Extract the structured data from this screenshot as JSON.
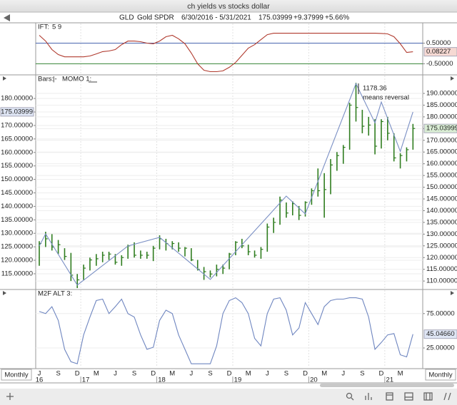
{
  "window_title": "ch yields vs stocks dollar",
  "header": {
    "symbol": "GLD",
    "name": "Gold SPDR",
    "date_range": "6/30/2016 - 5/31/2021",
    "last": "175.03999",
    "change": "+9.37999",
    "change_pct": "+5.66%"
  },
  "x_axis": {
    "months": [
      "J",
      "S",
      "D",
      "M",
      "J",
      "S",
      "D",
      "M",
      "J",
      "S",
      "D",
      "M",
      "J",
      "S",
      "D",
      "M",
      "J",
      "S",
      "D",
      "M"
    ],
    "years": [
      "16",
      "17",
      "18",
      "19",
      "20",
      "21"
    ],
    "period_left": "Monthly",
    "period_right": "Monthly"
  },
  "chart_data": [
    {
      "type": "line",
      "title": "IFT:",
      "params": "5 9",
      "ylim": [
        -1,
        1.45
      ],
      "yticks": [
        {
          "value": 0.5,
          "label": "0.50000"
        },
        {
          "value": -0.5,
          "label": "-0.50000"
        }
      ],
      "tick_colors": [
        "#4a67b0",
        "#3d8a3d"
      ],
      "series": [
        {
          "color": "#b03a2e",
          "values": [
            0.88,
            0.6,
            0.19,
            -0.05,
            -0.16,
            -0.16,
            -0.16,
            -0.16,
            -0.12,
            -0.02,
            0.09,
            0.12,
            0.19,
            0.43,
            0.6,
            0.6,
            0.57,
            0.5,
            0.47,
            0.6,
            0.81,
            0.88,
            0.71,
            0.47,
            0.02,
            -0.5,
            -0.81,
            -0.88,
            -0.88,
            -0.84,
            -0.67,
            -0.43,
            -0.09,
            0.26,
            0.43,
            0.67,
            0.91,
            0.98,
            0.98,
            0.98,
            0.98,
            0.98,
            0.98,
            0.98,
            0.98,
            0.98,
            0.98,
            0.98,
            0.98,
            0.98,
            0.98,
            0.98,
            0.98,
            0.98,
            0.97,
            0.95,
            0.81,
            0.47,
            0.05,
            0.08227
          ]
        }
      ],
      "last_value": 0.08227,
      "last_color": "#f6d9d3"
    },
    {
      "type": "ohlc",
      "title": "Bars:",
      "style": "|-",
      "overlay_title": "MOMO 1:",
      "ylim": [
        109.7,
        188.5
      ],
      "yticks": [
        {
          "value": 115,
          "label": "115.00000"
        },
        {
          "value": 120,
          "label": "120.00000"
        },
        {
          "value": 125,
          "label": "125.00000"
        },
        {
          "value": 130,
          "label": "130.00000"
        },
        {
          "value": 135,
          "label": "135.00000"
        },
        {
          "value": 140,
          "label": "140.00000"
        },
        {
          "value": 145,
          "label": "145.00000"
        },
        {
          "value": 150,
          "label": "150.00000"
        },
        {
          "value": 155,
          "label": "155.00000"
        },
        {
          "value": 160,
          "label": "160.00000"
        },
        {
          "value": 165,
          "label": "165.00000"
        },
        {
          "value": 170,
          "label": "170.00000"
        },
        {
          "value": 175,
          "label": "175.00000"
        },
        {
          "value": 180,
          "label": "180.00000"
        }
      ],
      "y2lim": [
        107,
        197.6
      ],
      "y2ticks": [
        {
          "value": 110,
          "label": "110.00000"
        },
        {
          "value": 115,
          "label": "115.00000"
        },
        {
          "value": 120,
          "label": "120.00000"
        },
        {
          "value": 125,
          "label": "125.00000"
        },
        {
          "value": 130,
          "label": "130.00000"
        },
        {
          "value": 135,
          "label": "135.00000"
        },
        {
          "value": 140,
          "label": "140.00000"
        },
        {
          "value": 145,
          "label": "145.00000"
        },
        {
          "value": 150,
          "label": "150.00000"
        },
        {
          "value": 155,
          "label": "155.00000"
        },
        {
          "value": 160,
          "label": "160.00000"
        },
        {
          "value": 165,
          "label": "165.00000"
        },
        {
          "value": 170,
          "label": "170.00000"
        },
        {
          "value": 175,
          "label": "175.00000"
        },
        {
          "value": 180,
          "label": "180.00000"
        },
        {
          "value": 185,
          "label": "185.00000"
        },
        {
          "value": 190,
          "label": "190.00000"
        }
      ],
      "bars": {
        "axis": "y2",
        "color": "#2f7d1f",
        "high": [
          127,
          131,
          130,
          127.5,
          124,
          122,
          113,
          117,
          120,
          121.5,
          122.5,
          122.5,
          121.5,
          121,
          125.5,
          126.5,
          123,
          122.5,
          125,
          129.5,
          128,
          127,
          126.5,
          124.5,
          124,
          119,
          116,
          114.5,
          117,
          117,
          122,
          127,
          128,
          125.5,
          123,
          124.5,
          134.5,
          137,
          146,
          143.5,
          144,
          142,
          144,
          149.5,
          158,
          156,
          162,
          165,
          168,
          186,
          194.5,
          183,
          180,
          179,
          179,
          180,
          173,
          164.5,
          167,
          177
        ],
        "low": [
          116.5,
          124.5,
          123,
          121.5,
          119,
          110,
          107,
          110.5,
          114.5,
          116.5,
          118,
          119,
          117,
          116.5,
          119.5,
          120,
          119.5,
          119.5,
          118.5,
          123.5,
          123,
          123.5,
          122.5,
          120.5,
          118.5,
          114.5,
          110.5,
          111.5,
          112,
          113,
          115,
          121,
          124,
          121,
          120,
          119.5,
          122.5,
          130.5,
          134,
          137,
          138,
          136,
          137.5,
          142.5,
          146,
          137,
          147,
          157,
          160,
          166,
          178,
          173,
          172,
          164,
          166.5,
          170,
          161,
          158,
          161,
          166
        ],
        "close": [
          126,
          128,
          124.5,
          125.5,
          120.5,
          112.5,
          110.5,
          115.5,
          119,
          119.5,
          121,
          121.5,
          118,
          120,
          125,
          121,
          121,
          121,
          124,
          128,
          126,
          126,
          124,
          124,
          119,
          115,
          114,
          113,
          115,
          115.5,
          121.5,
          126.5,
          125,
          122.5,
          121,
          123.5,
          133,
          135,
          144.5,
          139,
          143,
          138,
          143.5,
          148.5,
          148.5,
          149,
          159.5,
          163.5,
          167,
          185,
          184,
          176,
          176.5,
          167.5,
          178,
          173,
          162.5,
          163.5,
          166,
          175.03999
        ]
      },
      "series": [
        {
          "axis": "y",
          "color": "#7a8fc4",
          "x": [
            0,
            1,
            6,
            14,
            19,
            27,
            39,
            42,
            50,
            53,
            54,
            57,
            59
          ],
          "values": [
            125.3,
            129.8,
            110.8,
            125.3,
            128.5,
            112.9,
            143.8,
            137.2,
            185.5,
            171,
            178.7,
            160.4,
            175
          ]
        }
      ],
      "annotation": [
        "1178.36",
        "means reversal"
      ],
      "last_value": {
        "value": 175.03999,
        "label": "175.03999"
      },
      "last_colors": [
        "#dfe6f5",
        "#d9edd4"
      ]
    },
    {
      "type": "line",
      "title": "M2F ALT 3:",
      "ylim": [
        -3,
        109
      ],
      "yticks": [
        {
          "value": 75,
          "label": "75.00000"
        },
        {
          "value": 25,
          "label": "25.00000"
        }
      ],
      "series": [
        {
          "color": "#6f86c0",
          "values": [
            78,
            75,
            85,
            65,
            23,
            5,
            2,
            44,
            70,
            94,
            96,
            75,
            85,
            96,
            75,
            70,
            44,
            23,
            26,
            65,
            80,
            75,
            44,
            23,
            2,
            2,
            2,
            2,
            28,
            75,
            94,
            98,
            91,
            75,
            39,
            28,
            75,
            96,
            98,
            80,
            44,
            54,
            91,
            75,
            59,
            85,
            94,
            96,
            96,
            98,
            98,
            96,
            70,
            23,
            33,
            44,
            46,
            15,
            12,
            45.0466
          ]
        }
      ],
      "last_value": {
        "value": 45.0466,
        "label": "45.04660"
      },
      "last_color": "#dfe6f5"
    }
  ]
}
